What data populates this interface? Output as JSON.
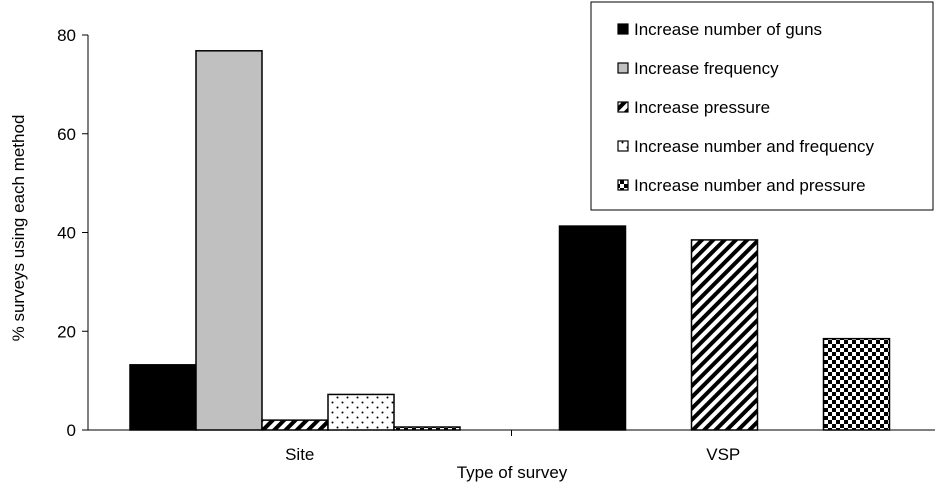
{
  "chart_data": {
    "type": "bar",
    "title": "",
    "xlabel": "Type of survey",
    "ylabel": "% surveys using each method",
    "ylim": [
      0,
      80
    ],
    "yticks": [
      0,
      20,
      40,
      60,
      80
    ],
    "grid": false,
    "legend_position": "top-right",
    "categories": [
      "Site",
      "VSP"
    ],
    "series": [
      {
        "name": "Increase number of guns",
        "pattern": "solid",
        "values": [
          13.2,
          41.3
        ]
      },
      {
        "name": "Increase frequency",
        "pattern": "gray",
        "values": [
          76.8,
          0
        ]
      },
      {
        "name": "Increase pressure",
        "pattern": "diagonal",
        "values": [
          2.0,
          38.5
        ]
      },
      {
        "name": "Increase number and frequency",
        "pattern": "dots",
        "values": [
          7.2,
          0
        ]
      },
      {
        "name": "Increase number and pressure",
        "pattern": "checker",
        "values": [
          0.6,
          18.5
        ]
      }
    ],
    "colors": {
      "bar_stroke": "#000000",
      "solid": "#000000",
      "gray": "#c0c0c0",
      "background": "#ffffff"
    }
  }
}
